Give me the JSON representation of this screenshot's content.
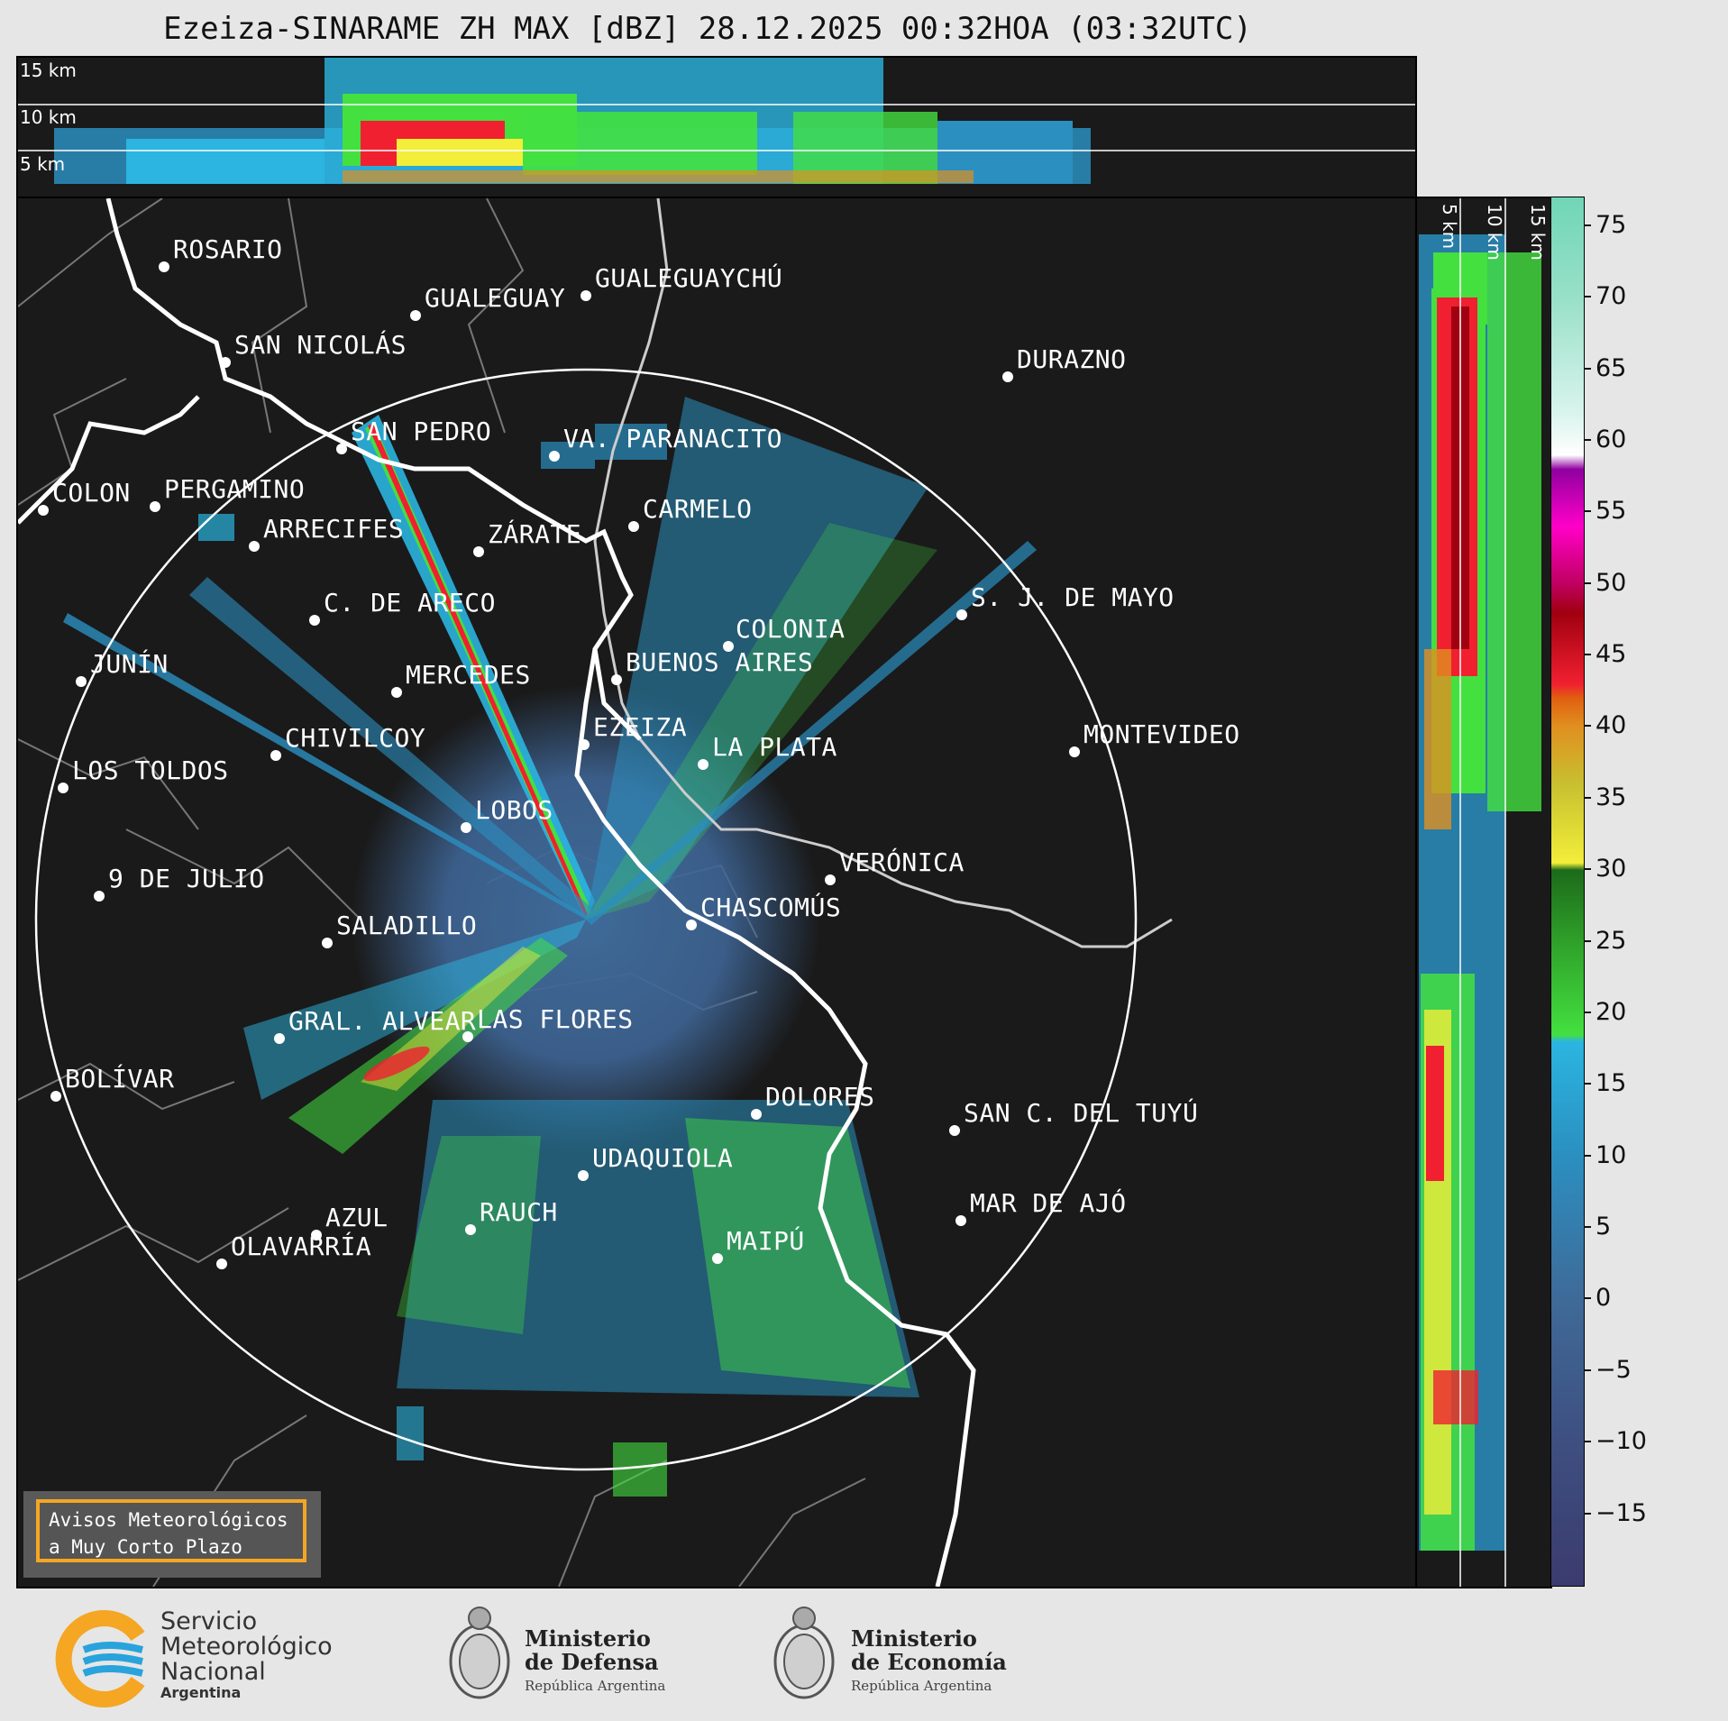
{
  "title": "Ezeiza-SINARAME ZH MAX [dBZ] 28.12.2025 00:32HOA (03:32UTC)",
  "top_panel": {
    "labels": [
      "15 km",
      "10 km",
      "5 km"
    ]
  },
  "side_panel": {
    "labels": [
      "5 km",
      "10 km",
      "15 km"
    ]
  },
  "colorbar": {
    "ticks": [
      "75",
      "70",
      "65",
      "60",
      "55",
      "50",
      "45",
      "40",
      "35",
      "30",
      "25",
      "20",
      "15",
      "10",
      "5",
      "0",
      "−5",
      "−10",
      "−15"
    ],
    "stops": [
      {
        "v": -20,
        "c": "#3b3b6e"
      },
      {
        "v": -10,
        "c": "#3e4f80"
      },
      {
        "v": 0,
        "c": "#3f6a98"
      },
      {
        "v": 10,
        "c": "#2b8fc0"
      },
      {
        "v": 18,
        "c": "#2bb5e0"
      },
      {
        "v": 18.5,
        "c": "#43e040"
      },
      {
        "v": 25,
        "c": "#2fa02a"
      },
      {
        "v": 30,
        "c": "#1d6b1a"
      },
      {
        "v": 30.5,
        "c": "#f2ee3a"
      },
      {
        "v": 36,
        "c": "#c8c030"
      },
      {
        "v": 40,
        "c": "#e09020"
      },
      {
        "v": 42,
        "c": "#e06010"
      },
      {
        "v": 43,
        "c": "#f02030"
      },
      {
        "v": 48,
        "c": "#a00010"
      },
      {
        "v": 50,
        "c": "#c00060"
      },
      {
        "v": 54,
        "c": "#ff00c8"
      },
      {
        "v": 58,
        "c": "#9000a0"
      },
      {
        "v": 59,
        "c": "#ffffff"
      },
      {
        "v": 62,
        "c": "#d8f4ec"
      },
      {
        "v": 70,
        "c": "#98e0c8"
      },
      {
        "v": 77,
        "c": "#70d6b6"
      }
    ]
  },
  "cities": [
    {
      "name": "ROSARIO",
      "id": "rosario"
    },
    {
      "name": "GUALEGUAYCHÚ",
      "id": "gualeguaychu"
    },
    {
      "name": "GUALEGUAY",
      "id": "gualeguay"
    },
    {
      "name": "SAN NICOLÁS",
      "id": "san-nicolas"
    },
    {
      "name": "DURAZNO",
      "id": "durazno"
    },
    {
      "name": "SAN PEDRO",
      "id": "san-pedro"
    },
    {
      "name": "VA. PARANACITO",
      "id": "va-paranacito"
    },
    {
      "name": "COLON",
      "id": "colon"
    },
    {
      "name": "PERGAMINO",
      "id": "pergamino"
    },
    {
      "name": "CARMELO",
      "id": "carmelo"
    },
    {
      "name": "ARRECIFES",
      "id": "arrecifes"
    },
    {
      "name": "ZÁRATE",
      "id": "zarate"
    },
    {
      "name": "C. DE ARECO",
      "id": "c-de-areco"
    },
    {
      "name": "S. J. DE MAYO",
      "id": "sj-de-mayo"
    },
    {
      "name": "COLONIA",
      "id": "colonia"
    },
    {
      "name": "JUNÍN",
      "id": "junin"
    },
    {
      "name": "BUENOS AIRES",
      "id": "buenos-aires"
    },
    {
      "name": "MERCEDES",
      "id": "mercedes"
    },
    {
      "name": "EZEIZA",
      "id": "ezeiza"
    },
    {
      "name": "MONTEVIDEO",
      "id": "montevideo"
    },
    {
      "name": "CHIVILCOY",
      "id": "chivilcoy"
    },
    {
      "name": "LA PLATA",
      "id": "la-plata"
    },
    {
      "name": "LOS TOLDOS",
      "id": "los-toldos"
    },
    {
      "name": "LOBOS",
      "id": "lobos"
    },
    {
      "name": "VERÓNICA",
      "id": "veronica"
    },
    {
      "name": "9 DE JULIO",
      "id": "9-de-julio"
    },
    {
      "name": "CHASCOMÚS",
      "id": "chascomus"
    },
    {
      "name": "SALADILLO",
      "id": "saladillo"
    },
    {
      "name": "GRAL. ALVEAR",
      "id": "gral-alvear"
    },
    {
      "name": "LAS FLORES",
      "id": "las-flores"
    },
    {
      "name": "BOLÍVAR",
      "id": "bolivar"
    },
    {
      "name": "DOLORES",
      "id": "dolores"
    },
    {
      "name": "SAN C. DEL TUYÚ",
      "id": "san-c-del-tuyu"
    },
    {
      "name": "UDAQUIOLA",
      "id": "udaquiola"
    },
    {
      "name": "MAR DE AJÓ",
      "id": "mar-de-ajo"
    },
    {
      "name": "AZUL",
      "id": "azul"
    },
    {
      "name": "RAUCH",
      "id": "rauch"
    },
    {
      "name": "OLAVARRÍA",
      "id": "olavarria"
    },
    {
      "name": "MAIPÚ",
      "id": "maipu"
    }
  ],
  "notice": {
    "line1": "Avisos Meteorológicos",
    "line2": "a Muy Corto Plazo"
  },
  "logos": {
    "smn": {
      "line1": "Servicio",
      "line2": "Meteorológico",
      "line3": "Nacional",
      "line4": "Argentina"
    },
    "defensa": {
      "line1": "Ministerio",
      "line2": "de Defensa",
      "line3": "República Argentina"
    },
    "economia": {
      "line1": "Ministerio",
      "line2": "de Economía",
      "line3": "República Argentina"
    }
  }
}
